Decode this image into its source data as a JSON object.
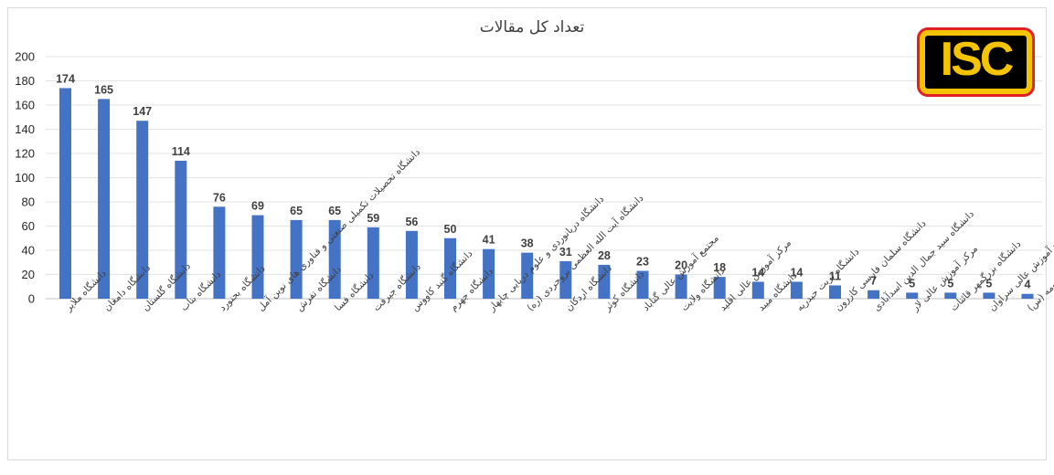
{
  "chart_data": {
    "type": "bar",
    "title": "تعداد کل مقالات",
    "xlabel": "",
    "ylabel": "",
    "ylim": [
      0,
      200
    ],
    "yticks": [
      0,
      20,
      40,
      60,
      80,
      100,
      120,
      140,
      160,
      180,
      200
    ],
    "grid": true,
    "legend": "none",
    "bar_color": "#4472c4",
    "categories": [
      "دانشگاه ملایر",
      "دانشگاه دامغان",
      "دانشگاه گلستان",
      "دانشگاه بناب",
      "دانشگاه بجنورد",
      "دانشگاه تحصیلات تکمیلی صنعتی و فناوری های نوین آمل",
      "دانشگاه تفرش",
      "دانشگاه فسا",
      "دانشگاه جیرفت",
      "دانشگاه گنبد کاووس",
      "دانشگاه جهرم",
      "دانشگاه دریانوردی و علوم دریایی چابهار",
      "دانشگاه آیت الله العظمی بروجردی (ره)",
      "دانشگاه اردکان",
      "دانشگاه کوثر",
      "مجتمع آموزش عالی گناباد",
      "دانشگاه ولایت",
      "مرکز آموزش عالی اقلید",
      "دانشگاه میبد",
      "دانشگاه تربت حیدریه",
      "دانشگاه سلمان فارسی کازرون",
      "دانشگاه سید جمال الدین اسدآبادی",
      "مرکز آموزش عالی لار",
      "دانشگاه بزرگمهر قائنات",
      "مجتمع آموزش عالی سراوان",
      "دانشکده علوم انسانی و هنر حضرت معصومه (س)"
    ],
    "values": [
      174,
      165,
      147,
      114,
      76,
      69,
      65,
      65,
      59,
      56,
      50,
      41,
      38,
      31,
      28,
      23,
      20,
      18,
      14,
      14,
      11,
      7,
      5,
      5,
      5,
      4
    ]
  },
  "logo": {
    "text": "ISC",
    "border_color": "#e31e24",
    "background_color": "#f5c400"
  }
}
